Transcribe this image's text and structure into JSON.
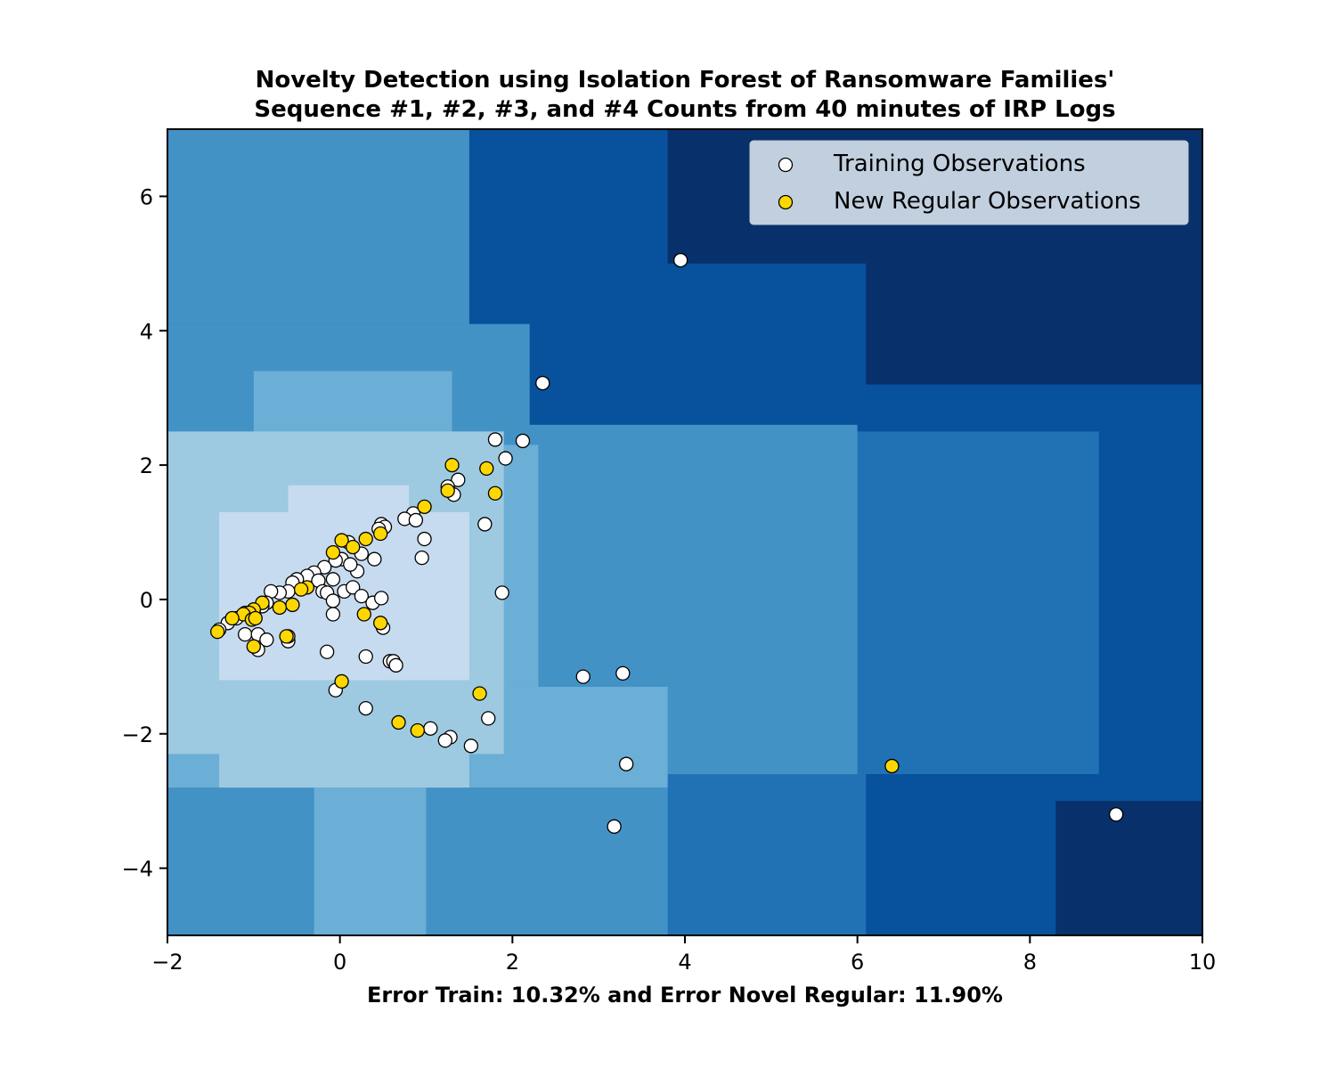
{
  "chart_data": {
    "type": "scatter",
    "title": [
      "Novelty Detection using Isolation Forest of Ransomware Families'",
      "Sequence #1, #2, #3, and #4 Counts from 40 minutes of IRP Logs"
    ],
    "xlabel": "Error Train: 10.32% and Error Novel Regular: 11.90%",
    "ylabel": "",
    "xlim": [
      -2,
      10
    ],
    "ylim": [
      -5,
      7
    ],
    "x_ticks": [
      -2,
      0,
      2,
      4,
      6,
      8,
      10
    ],
    "y_ticks": [
      -4,
      -2,
      0,
      2,
      4,
      6
    ],
    "x_tick_labels": [
      "−2",
      "0",
      "2",
      "4",
      "6",
      "8",
      "10"
    ],
    "y_tick_labels": [
      "−4",
      "−2",
      "0",
      "2",
      "4",
      "6"
    ],
    "grid": false,
    "legend_position": "top-right",
    "background": "decision-function contour (blue shades, darker = more anomalous)",
    "colors": {
      "level_1": "#08306b",
      "level_2": "#08519c",
      "level_3": "#2171b5",
      "level_4": "#4292c6",
      "level_5": "#6baed6",
      "level_6": "#9ecae1",
      "level_7": "#c6dbef",
      "training": "#ffffff",
      "new_regular": "#ffd700"
    },
    "series": [
      {
        "name": "Training Observations",
        "color": "#ffffff",
        "points": [
          [
            3.95,
            5.05
          ],
          [
            2.35,
            3.22
          ],
          [
            1.8,
            2.38
          ],
          [
            2.12,
            2.36
          ],
          [
            1.92,
            2.1
          ],
          [
            1.37,
            1.78
          ],
          [
            1.25,
            1.68
          ],
          [
            1.32,
            1.56
          ],
          [
            1.68,
            1.12
          ],
          [
            0.85,
            1.28
          ],
          [
            0.75,
            1.2
          ],
          [
            0.88,
            1.18
          ],
          [
            0.48,
            1.12
          ],
          [
            0.52,
            1.08
          ],
          [
            0.45,
            1.05
          ],
          [
            0.98,
            0.9
          ],
          [
            0.95,
            0.62
          ],
          [
            0.4,
            0.6
          ],
          [
            0.25,
            0.68
          ],
          [
            0.2,
            0.42
          ],
          [
            0.1,
            0.85
          ],
          [
            0.02,
            0.6
          ],
          [
            0.12,
            0.52
          ],
          [
            -0.05,
            0.58
          ],
          [
            -0.18,
            0.48
          ],
          [
            -0.3,
            0.4
          ],
          [
            -0.38,
            0.35
          ],
          [
            -0.5,
            0.3
          ],
          [
            -0.55,
            0.25
          ],
          [
            -0.25,
            0.28
          ],
          [
            -0.08,
            0.3
          ],
          [
            -0.2,
            0.12
          ],
          [
            -0.15,
            0.1
          ],
          [
            0.05,
            0.12
          ],
          [
            0.15,
            0.18
          ],
          [
            0.25,
            0.05
          ],
          [
            0.38,
            -0.05
          ],
          [
            0.48,
            0.02
          ],
          [
            -0.08,
            -0.02
          ],
          [
            -0.08,
            -0.22
          ],
          [
            -0.6,
            0.12
          ],
          [
            -0.7,
            0.1
          ],
          [
            -0.8,
            0.12
          ],
          [
            -0.85,
            -0.05
          ],
          [
            -0.9,
            -0.1
          ],
          [
            -1.0,
            -0.15
          ],
          [
            -1.1,
            -0.2
          ],
          [
            -1.2,
            -0.28
          ],
          [
            -1.3,
            -0.35
          ],
          [
            -1.4,
            -0.45
          ],
          [
            -1.1,
            -0.52
          ],
          [
            -0.95,
            -0.52
          ],
          [
            -0.85,
            -0.6
          ],
          [
            -0.95,
            -0.75
          ],
          [
            -0.6,
            -0.62
          ],
          [
            -0.6,
            -0.55
          ],
          [
            0.5,
            -0.42
          ],
          [
            -0.15,
            -0.78
          ],
          [
            0.3,
            -0.85
          ],
          [
            0.58,
            -0.92
          ],
          [
            0.62,
            -0.92
          ],
          [
            0.65,
            -0.98
          ],
          [
            1.88,
            0.1
          ],
          [
            2.82,
            -1.15
          ],
          [
            3.28,
            -1.1
          ],
          [
            -0.05,
            -1.35
          ],
          [
            0.3,
            -1.62
          ],
          [
            1.72,
            -1.77
          ],
          [
            1.05,
            -1.92
          ],
          [
            1.28,
            -2.05
          ],
          [
            1.22,
            -2.1
          ],
          [
            1.52,
            -2.18
          ],
          [
            3.32,
            -2.45
          ],
          [
            3.18,
            -3.38
          ],
          [
            9.0,
            -3.2
          ]
        ]
      },
      {
        "name": "New Regular Observations",
        "color": "#ffd700",
        "points": [
          [
            1.3,
            2.0
          ],
          [
            1.7,
            1.95
          ],
          [
            1.25,
            1.62
          ],
          [
            1.8,
            1.58
          ],
          [
            0.98,
            1.38
          ],
          [
            0.47,
            0.98
          ],
          [
            0.3,
            0.9
          ],
          [
            0.02,
            0.88
          ],
          [
            0.15,
            0.78
          ],
          [
            -0.08,
            0.7
          ],
          [
            -0.38,
            0.18
          ],
          [
            -0.45,
            0.15
          ],
          [
            -0.55,
            -0.08
          ],
          [
            -0.7,
            -0.12
          ],
          [
            -0.9,
            -0.05
          ],
          [
            -1.0,
            -0.15
          ],
          [
            -1.05,
            -0.2
          ],
          [
            -1.12,
            -0.22
          ],
          [
            -1.25,
            -0.28
          ],
          [
            -1.42,
            -0.48
          ],
          [
            -1.02,
            -0.3
          ],
          [
            -0.98,
            -0.28
          ],
          [
            -1.0,
            -0.7
          ],
          [
            -0.62,
            -0.55
          ],
          [
            0.28,
            -0.22
          ],
          [
            0.47,
            -0.35
          ],
          [
            0.02,
            -1.22
          ],
          [
            1.62,
            -1.4
          ],
          [
            0.68,
            -1.83
          ],
          [
            0.9,
            -1.95
          ],
          [
            6.4,
            -2.48
          ]
        ]
      }
    ]
  }
}
